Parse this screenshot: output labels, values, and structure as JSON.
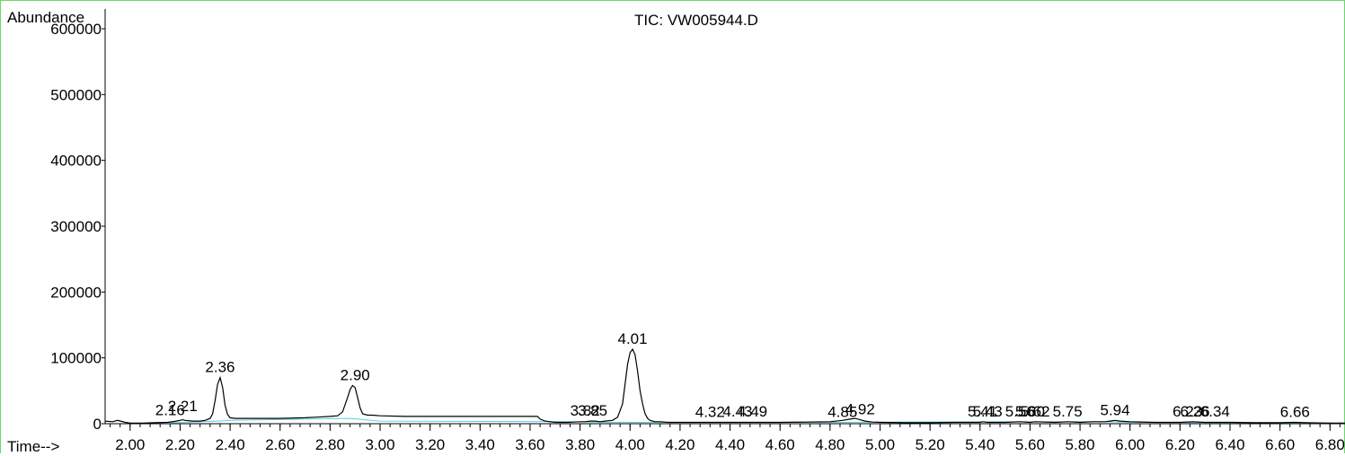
{
  "chart_data": {
    "type": "line",
    "title": "TIC: VW005944.D",
    "ylabel": "Abundance",
    "xlabel": "Time-->",
    "xlim": [
      1.9,
      6.86
    ],
    "ylim": [
      0,
      630000
    ],
    "grid": false,
    "y_ticks": [
      0,
      100000,
      200000,
      300000,
      400000,
      500000,
      600000
    ],
    "y_tick_labels": [
      "0",
      "100000",
      "200000",
      "300000",
      "400000",
      "500000",
      "600000"
    ],
    "x_ticks": [
      2.0,
      2.2,
      2.4,
      2.6,
      2.8,
      3.0,
      3.2,
      3.4,
      3.6,
      3.8,
      4.0,
      4.2,
      4.4,
      4.6,
      4.8,
      5.0,
      5.2,
      5.4,
      5.6,
      5.8,
      6.0,
      6.2,
      6.4,
      6.6,
      6.8
    ],
    "x_tick_labels": [
      "2.00",
      "2.20",
      "2.40",
      "2.60",
      "2.80",
      "3.00",
      "3.20",
      "3.40",
      "3.60",
      "3.80",
      "4.00",
      "4.20",
      "4.40",
      "4.60",
      "4.80",
      "5.00",
      "5.20",
      "5.40",
      "5.60",
      "5.80",
      "6.00",
      "6.20",
      "6.40",
      "6.60",
      "6.80"
    ],
    "series": [
      {
        "color": "#000000",
        "x": [
          1.9,
          1.93,
          1.95,
          1.98,
          2.0,
          2.05,
          2.1,
          2.15,
          2.18,
          2.2,
          2.21,
          2.22,
          2.25,
          2.28,
          2.3,
          2.32,
          2.33,
          2.34,
          2.35,
          2.36,
          2.37,
          2.38,
          2.39,
          2.4,
          2.42,
          2.45,
          2.5,
          2.6,
          2.7,
          2.75,
          2.8,
          2.83,
          2.85,
          2.87,
          2.88,
          2.89,
          2.9,
          2.91,
          2.92,
          2.93,
          2.95,
          2.97,
          3.0,
          3.1,
          3.2,
          3.3,
          3.4,
          3.5,
          3.6,
          3.63,
          3.64,
          3.66,
          3.7,
          3.75,
          3.8,
          3.82,
          3.84,
          3.86,
          3.88,
          3.9,
          3.93,
          3.95,
          3.97,
          3.98,
          3.99,
          4.0,
          4.01,
          4.02,
          4.03,
          4.04,
          4.05,
          4.06,
          4.07,
          4.08,
          4.1,
          4.12,
          4.15,
          4.2,
          4.3,
          4.4,
          4.5,
          4.6,
          4.7,
          4.8,
          4.85,
          4.88,
          4.9,
          4.92,
          4.94,
          4.97,
          5.0,
          5.1,
          5.2,
          5.3,
          5.4,
          5.41,
          5.43,
          5.5,
          5.56,
          5.6,
          5.62,
          5.7,
          5.75,
          5.8,
          5.85,
          5.9,
          5.92,
          5.94,
          5.96,
          6.0,
          6.1,
          6.2,
          6.25,
          6.3,
          6.34,
          6.4,
          6.5,
          6.6,
          6.66,
          6.7,
          6.8,
          6.86
        ],
        "y": [
          4000,
          3000,
          5000,
          2000,
          1000,
          1000,
          1500,
          2000,
          3500,
          5000,
          6000,
          5000,
          4000,
          4000,
          5000,
          8000,
          15000,
          35000,
          60000,
          70000,
          55000,
          28000,
          14000,
          9000,
          8000,
          8000,
          8000,
          8000,
          9000,
          10000,
          11000,
          12000,
          18000,
          40000,
          52000,
          58000,
          55000,
          40000,
          24000,
          15000,
          13000,
          13000,
          12000,
          11000,
          11000,
          11000,
          11000,
          11000,
          11000,
          11000,
          7000,
          4000,
          2000,
          2000,
          3000,
          3000,
          4000,
          4000,
          3000,
          4000,
          5000,
          10000,
          30000,
          60000,
          90000,
          108000,
          113000,
          105000,
          80000,
          50000,
          30000,
          15000,
          8000,
          5000,
          3000,
          3000,
          2000,
          2000,
          2000,
          2000,
          2000,
          2000,
          2500,
          3000,
          5000,
          7000,
          8000,
          6000,
          4000,
          2500,
          2000,
          1500,
          1500,
          2000,
          2000,
          3000,
          2000,
          2000,
          3000,
          2000,
          3000,
          2000,
          3000,
          2000,
          3000,
          3000,
          4000,
          5000,
          4000,
          3000,
          2000,
          2000,
          3000,
          2000,
          2000,
          2000,
          1500,
          1500,
          2000,
          1500,
          1000,
          1000
        ]
      }
    ],
    "baseline": {
      "color": "#56d2e8",
      "x": [
        2.15,
        2.35,
        2.4,
        2.88,
        3.0,
        3.75,
        3.9,
        4.1,
        4.85,
        5.0,
        5.9,
        6.0,
        6.86
      ],
      "y": [
        1000,
        4000,
        5000,
        8000,
        4000,
        3000,
        2000,
        2000,
        2000,
        2500,
        3000,
        2000,
        1000
      ]
    },
    "peaks": [
      {
        "label": "2.16",
        "rt": 2.16,
        "height": 5000
      },
      {
        "label": "2.21",
        "rt": 2.21,
        "height": 11000
      },
      {
        "label": "2.36",
        "rt": 2.36,
        "height": 70000
      },
      {
        "label": "2.90",
        "rt": 2.9,
        "height": 58000
      },
      {
        "label": "3.82",
        "rt": 3.82,
        "height": 4000
      },
      {
        "label": "3.85",
        "rt": 3.85,
        "height": 4000
      },
      {
        "label": "4.01",
        "rt": 4.01,
        "height": 113000
      },
      {
        "label": "4.32",
        "rt": 4.32,
        "height": 2000
      },
      {
        "label": "4.43",
        "rt": 4.43,
        "height": 3000
      },
      {
        "label": "4.49",
        "rt": 4.49,
        "height": 3000
      },
      {
        "label": "4.85",
        "rt": 4.85,
        "height": 2000
      },
      {
        "label": "4.92",
        "rt": 4.92,
        "height": 6000
      },
      {
        "label": "5.41",
        "rt": 5.41,
        "height": 3000
      },
      {
        "label": "5.43",
        "rt": 5.43,
        "height": 3000
      },
      {
        "label": "5.56",
        "rt": 5.56,
        "height": 3000
      },
      {
        "label": "5.60",
        "rt": 5.6,
        "height": 3000
      },
      {
        "label": "5.62",
        "rt": 5.62,
        "height": 3000
      },
      {
        "label": "5.75",
        "rt": 5.75,
        "height": 3000
      },
      {
        "label": "5.94",
        "rt": 5.94,
        "height": 5000
      },
      {
        "label": "6.23",
        "rt": 6.23,
        "height": 3000
      },
      {
        "label": "6.26",
        "rt": 6.26,
        "height": 3000
      },
      {
        "label": "6.34",
        "rt": 6.34,
        "height": 3000
      },
      {
        "label": "6.66",
        "rt": 6.66,
        "height": 2000
      }
    ]
  }
}
